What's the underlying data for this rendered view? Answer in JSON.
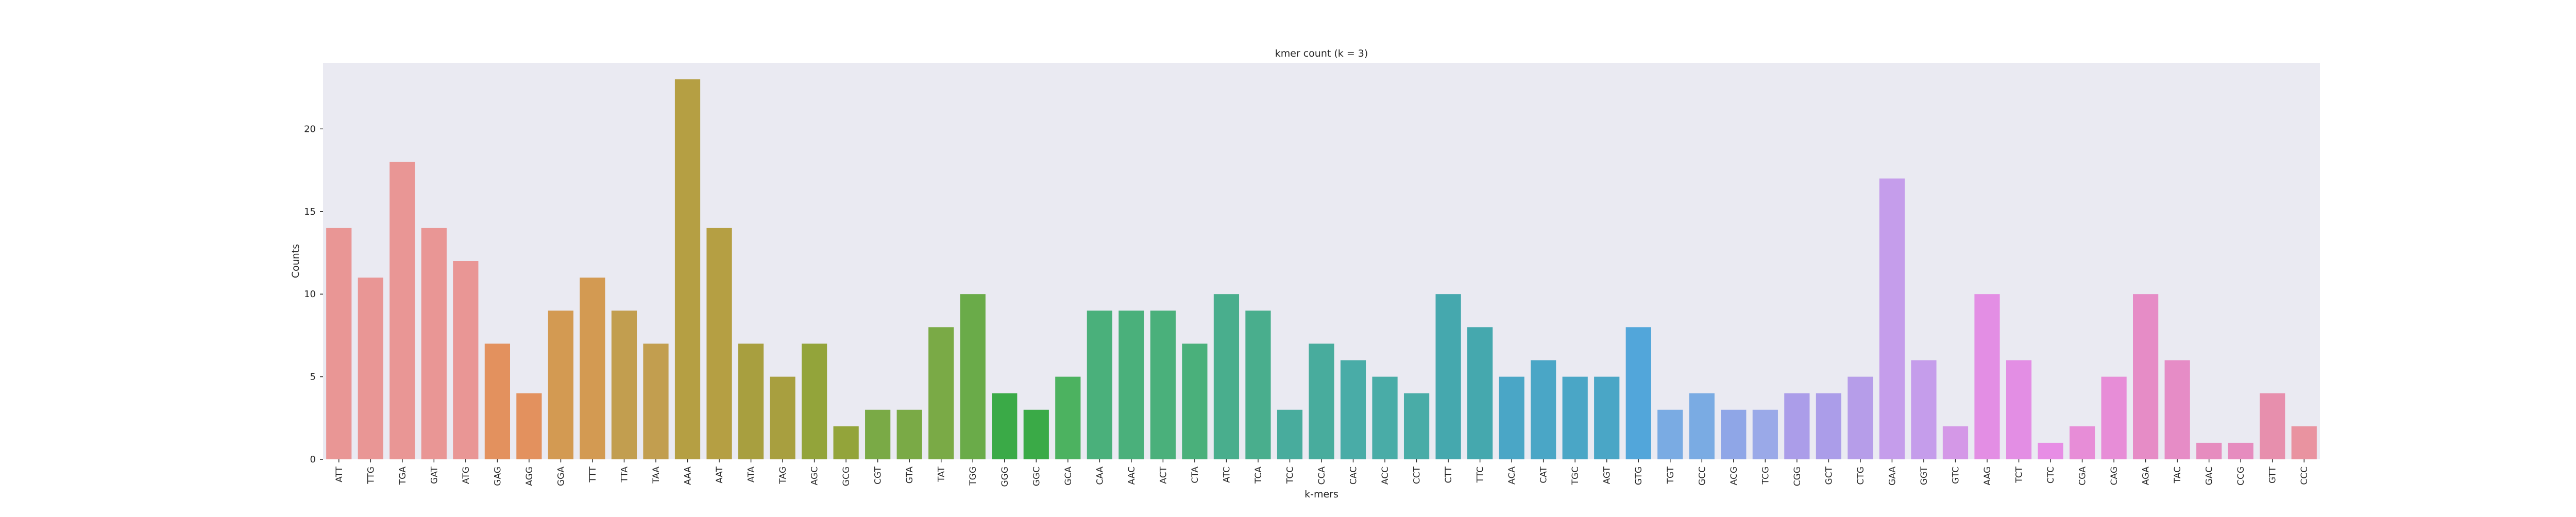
{
  "chart_data": {
    "type": "bar",
    "title": "kmer count (k = 3)",
    "xlabel": "k-mers",
    "ylabel": "Counts",
    "ylim": [
      0,
      24
    ],
    "yticks": [
      0,
      5,
      10,
      15,
      20
    ],
    "grid": false,
    "background": "#eaeaf2",
    "categories": [
      "ATT",
      "TTG",
      "TGA",
      "GAT",
      "ATG",
      "GAG",
      "AGG",
      "GGA",
      "TTT",
      "TTA",
      "TAA",
      "AAA",
      "AAT",
      "ATA",
      "TAG",
      "AGC",
      "GCG",
      "CGT",
      "GTA",
      "TAT",
      "TGG",
      "GGG",
      "GGC",
      "GCA",
      "CAA",
      "AAC",
      "ACT",
      "CTA",
      "ATC",
      "TCA",
      "TCC",
      "CCA",
      "CAC",
      "ACC",
      "CCT",
      "CTT",
      "TTC",
      "ACA",
      "CAT",
      "TGC",
      "AGT",
      "GTG",
      "TGT",
      "GCC",
      "ACG",
      "TCG",
      "CGG",
      "GCT",
      "CTG",
      "GAA",
      "GGT",
      "GTC",
      "AAG",
      "TCT",
      "CTC",
      "CGA",
      "CAG",
      "AGA",
      "TAC",
      "GAC",
      "CCG",
      "GTT",
      "CCC"
    ],
    "values": [
      14,
      11,
      18,
      14,
      12,
      7,
      4,
      9,
      11,
      9,
      7,
      23,
      14,
      7,
      5,
      7,
      2,
      3,
      3,
      8,
      10,
      4,
      3,
      5,
      9,
      9,
      9,
      7,
      10,
      9,
      3,
      7,
      6,
      5,
      4,
      10,
      8,
      5,
      6,
      5,
      5,
      8,
      3,
      4,
      3,
      3,
      4,
      4,
      5,
      17,
      6,
      2,
      10,
      6,
      1,
      2,
      5,
      10,
      6,
      1,
      1,
      4,
      2
    ],
    "colors": [
      "#e99695",
      "#e99695",
      "#e99695",
      "#e99695",
      "#e99695",
      "#e3915e",
      "#e3915e",
      "#d39a52",
      "#d39a52",
      "#c29e4f",
      "#c29e4f",
      "#b59f43",
      "#b59f43",
      "#a89f3f",
      "#a89f3f",
      "#93a43a",
      "#93a43a",
      "#7aaa46",
      "#7aaa46",
      "#7aaa46",
      "#6aab49",
      "#3aaa47",
      "#3aaa47",
      "#4cb260",
      "#4ab07b",
      "#4ab07b",
      "#4ab07b",
      "#4ab07b",
      "#49ae8d",
      "#49ae8d",
      "#48ac9d",
      "#48ac9d",
      "#49aca7",
      "#49aca7",
      "#49aca7",
      "#45a8ae",
      "#45a8ae",
      "#4aa6c6",
      "#4aa6c6",
      "#4aa6c6",
      "#4aa6c6",
      "#52a6da",
      "#7aabe3",
      "#7aabe3",
      "#8fa6e7",
      "#9aa9e8",
      "#ab9de9",
      "#ab9de9",
      "#b69de9",
      "#c59deb",
      "#c59deb",
      "#d498e7",
      "#e38ee4",
      "#e38ee4",
      "#e78de5",
      "#e78dd7",
      "#e78dd7",
      "#e68cc6",
      "#e68cc6",
      "#e68cbf",
      "#e68cbf",
      "#e78fad",
      "#e993a0"
    ]
  }
}
